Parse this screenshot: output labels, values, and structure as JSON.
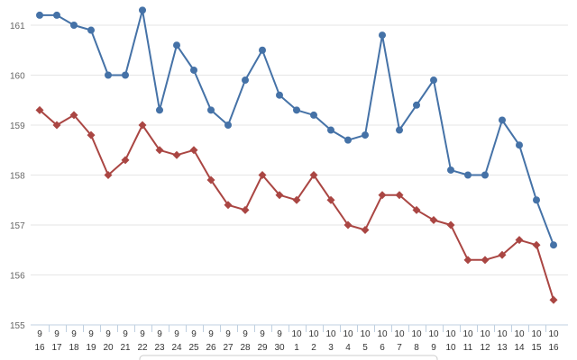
{
  "chart_data": {
    "type": "line",
    "title": "",
    "xlabel": "",
    "ylabel": "",
    "categories": [
      [
        "9",
        "16"
      ],
      [
        "9",
        "17"
      ],
      [
        "9",
        "18"
      ],
      [
        "9",
        "19"
      ],
      [
        "9",
        "20"
      ],
      [
        "9",
        "21"
      ],
      [
        "9",
        "22"
      ],
      [
        "9",
        "23"
      ],
      [
        "9",
        "24"
      ],
      [
        "9",
        "25"
      ],
      [
        "9",
        "26"
      ],
      [
        "9",
        "27"
      ],
      [
        "9",
        "28"
      ],
      [
        "9",
        "29"
      ],
      [
        "9",
        "30"
      ],
      [
        "10",
        "1"
      ],
      [
        "10",
        "2"
      ],
      [
        "10",
        "3"
      ],
      [
        "10",
        "4"
      ],
      [
        "10",
        "5"
      ],
      [
        "10",
        "6"
      ],
      [
        "10",
        "7"
      ],
      [
        "10",
        "8"
      ],
      [
        "10",
        "9"
      ],
      [
        "10",
        "10"
      ],
      [
        "10",
        "11"
      ],
      [
        "10",
        "12"
      ],
      [
        "10",
        "13"
      ],
      [
        "10",
        "14"
      ],
      [
        "10",
        "15"
      ],
      [
        "10",
        "16"
      ]
    ],
    "series": [
      {
        "color": "#4572a7",
        "marker": "circle",
        "values": [
          161.2,
          161.2,
          161.0,
          160.9,
          160.0,
          160.0,
          161.3,
          159.3,
          160.6,
          160.1,
          159.3,
          159.0,
          159.9,
          160.5,
          159.6,
          159.3,
          159.2,
          158.9,
          158.7,
          158.8,
          160.8,
          158.9,
          159.4,
          159.9,
          158.1,
          158.0,
          158.0,
          159.1,
          158.6,
          157.5,
          156.6
        ]
      },
      {
        "color": "#aa4643",
        "marker": "diamond",
        "values": [
          159.3,
          159.0,
          159.2,
          158.8,
          158.0,
          158.3,
          159.0,
          158.5,
          158.4,
          158.5,
          157.9,
          157.4,
          157.3,
          158.0,
          157.6,
          157.5,
          158.0,
          157.5,
          157.0,
          156.9,
          157.6,
          157.6,
          157.3,
          157.1,
          157.0,
          156.3,
          156.3,
          156.4,
          156.7,
          156.6,
          155.5
        ]
      }
    ],
    "ylim": [
      155,
      161.5
    ],
    "yticks": [
      155,
      156,
      157,
      158,
      159,
      160,
      161
    ],
    "grid": true,
    "legend": "bottom-center"
  }
}
